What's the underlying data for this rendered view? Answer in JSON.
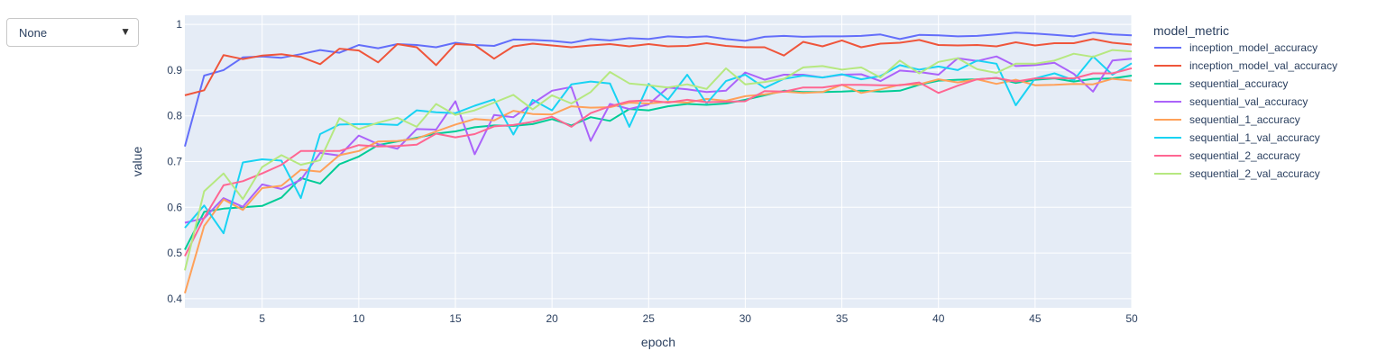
{
  "dropdown": {
    "value": "None",
    "arrow_icon": "triangle-down-icon"
  },
  "chart_data": {
    "type": "line",
    "xlabel": "epoch",
    "ylabel": "value",
    "legend_title": "model_metric",
    "legend_position": "right",
    "xlim": [
      1,
      50
    ],
    "ylim": [
      0.38,
      1.02
    ],
    "x_ticks": [
      5,
      10,
      15,
      20,
      25,
      30,
      35,
      40,
      45,
      50
    ],
    "y_ticks": [
      0.4,
      0.5,
      0.6,
      0.7,
      0.8,
      0.9,
      1
    ],
    "y_tick_labels": [
      "0.4",
      "0.5",
      "0.6",
      "0.7",
      "0.8",
      "0.9",
      "1"
    ],
    "grid": true,
    "background_color": "#e5ecf6",
    "x": [
      1,
      2,
      3,
      4,
      5,
      6,
      7,
      8,
      9,
      10,
      11,
      12,
      13,
      14,
      15,
      16,
      17,
      18,
      19,
      20,
      21,
      22,
      23,
      24,
      25,
      26,
      27,
      28,
      29,
      30,
      31,
      32,
      33,
      34,
      35,
      36,
      37,
      38,
      39,
      40,
      41,
      42,
      43,
      44,
      45,
      46,
      47,
      48,
      49,
      50
    ],
    "series": [
      {
        "name": "inception_model_accuracy",
        "color": "#636efa",
        "values": [
          0.733,
          0.888,
          0.9,
          0.928,
          0.93,
          0.927,
          0.935,
          0.944,
          0.938,
          0.955,
          0.948,
          0.957,
          0.955,
          0.95,
          0.96,
          0.955,
          0.953,
          0.967,
          0.966,
          0.964,
          0.96,
          0.968,
          0.965,
          0.97,
          0.968,
          0.974,
          0.972,
          0.974,
          0.968,
          0.964,
          0.973,
          0.975,
          0.973,
          0.974,
          0.974,
          0.975,
          0.978,
          0.968,
          0.977,
          0.976,
          0.974,
          0.975,
          0.978,
          0.982,
          0.98,
          0.977,
          0.974,
          0.982,
          0.978,
          0.976
        ]
      },
      {
        "name": "inception_model_val_accuracy",
        "color": "#ef553b",
        "values": [
          0.845,
          0.856,
          0.933,
          0.924,
          0.932,
          0.935,
          0.929,
          0.913,
          0.947,
          0.943,
          0.917,
          0.957,
          0.95,
          0.911,
          0.957,
          0.955,
          0.925,
          0.952,
          0.958,
          0.954,
          0.95,
          0.954,
          0.957,
          0.952,
          0.957,
          0.952,
          0.953,
          0.959,
          0.953,
          0.95,
          0.95,
          0.932,
          0.962,
          0.952,
          0.965,
          0.95,
          0.958,
          0.96,
          0.966,
          0.955,
          0.954,
          0.955,
          0.952,
          0.961,
          0.954,
          0.959,
          0.959,
          0.968,
          0.96,
          0.956
        ]
      },
      {
        "name": "sequential_accuracy",
        "color": "#00cc96",
        "values": [
          0.507,
          0.59,
          0.597,
          0.6,
          0.603,
          0.621,
          0.664,
          0.652,
          0.694,
          0.711,
          0.736,
          0.744,
          0.752,
          0.761,
          0.766,
          0.775,
          0.779,
          0.778,
          0.782,
          0.793,
          0.779,
          0.797,
          0.789,
          0.815,
          0.812,
          0.821,
          0.826,
          0.824,
          0.827,
          0.835,
          0.845,
          0.855,
          0.852,
          0.852,
          0.853,
          0.855,
          0.853,
          0.855,
          0.868,
          0.877,
          0.879,
          0.88,
          0.883,
          0.872,
          0.879,
          0.882,
          0.875,
          0.881,
          0.882,
          0.888
        ]
      },
      {
        "name": "sequential_val_accuracy",
        "color": "#ab63fa",
        "values": [
          0.566,
          0.576,
          0.62,
          0.601,
          0.65,
          0.64,
          0.66,
          0.719,
          0.713,
          0.757,
          0.738,
          0.728,
          0.771,
          0.77,
          0.832,
          0.716,
          0.802,
          0.797,
          0.827,
          0.855,
          0.863,
          0.745,
          0.826,
          0.815,
          0.825,
          0.862,
          0.858,
          0.852,
          0.855,
          0.895,
          0.879,
          0.89,
          0.89,
          0.884,
          0.89,
          0.891,
          0.876,
          0.899,
          0.896,
          0.89,
          0.926,
          0.92,
          0.93,
          0.909,
          0.911,
          0.916,
          0.892,
          0.853,
          0.921,
          0.925
        ]
      },
      {
        "name": "sequential_1_accuracy",
        "color": "#ffa15a",
        "values": [
          0.412,
          0.559,
          0.617,
          0.594,
          0.642,
          0.647,
          0.682,
          0.678,
          0.714,
          0.723,
          0.744,
          0.745,
          0.75,
          0.766,
          0.781,
          0.793,
          0.79,
          0.811,
          0.804,
          0.803,
          0.821,
          0.818,
          0.819,
          0.829,
          0.827,
          0.831,
          0.829,
          0.837,
          0.833,
          0.843,
          0.847,
          0.853,
          0.85,
          0.852,
          0.868,
          0.85,
          0.858,
          0.868,
          0.869,
          0.88,
          0.873,
          0.88,
          0.87,
          0.879,
          0.867,
          0.868,
          0.87,
          0.869,
          0.881,
          0.877
        ]
      },
      {
        "name": "sequential_1_val_accuracy",
        "color": "#19d3f3",
        "values": [
          0.555,
          0.604,
          0.543,
          0.698,
          0.705,
          0.702,
          0.62,
          0.76,
          0.781,
          0.782,
          0.782,
          0.78,
          0.812,
          0.808,
          0.806,
          0.822,
          0.836,
          0.759,
          0.835,
          0.812,
          0.869,
          0.875,
          0.871,
          0.776,
          0.87,
          0.835,
          0.89,
          0.827,
          0.876,
          0.89,
          0.861,
          0.881,
          0.888,
          0.884,
          0.891,
          0.88,
          0.887,
          0.911,
          0.901,
          0.908,
          0.9,
          0.921,
          0.914,
          0.823,
          0.882,
          0.893,
          0.878,
          0.93,
          0.89,
          0.915
        ]
      },
      {
        "name": "sequential_2_accuracy",
        "color": "#ff6692",
        "values": [
          0.493,
          0.577,
          0.648,
          0.657,
          0.674,
          0.693,
          0.723,
          0.723,
          0.723,
          0.736,
          0.733,
          0.734,
          0.737,
          0.761,
          0.753,
          0.76,
          0.777,
          0.78,
          0.787,
          0.798,
          0.776,
          0.806,
          0.821,
          0.832,
          0.834,
          0.829,
          0.835,
          0.83,
          0.831,
          0.832,
          0.854,
          0.853,
          0.862,
          0.862,
          0.868,
          0.868,
          0.867,
          0.867,
          0.873,
          0.85,
          0.866,
          0.88,
          0.883,
          0.875,
          0.882,
          0.883,
          0.882,
          0.893,
          0.893,
          0.904
        ]
      },
      {
        "name": "sequential_2_val_accuracy",
        "color": "#b6e880",
        "values": [
          0.462,
          0.635,
          0.674,
          0.618,
          0.688,
          0.714,
          0.693,
          0.703,
          0.795,
          0.771,
          0.785,
          0.796,
          0.776,
          0.826,
          0.802,
          0.812,
          0.829,
          0.846,
          0.814,
          0.845,
          0.827,
          0.852,
          0.896,
          0.871,
          0.867,
          0.862,
          0.869,
          0.859,
          0.904,
          0.869,
          0.874,
          0.881,
          0.906,
          0.909,
          0.901,
          0.906,
          0.884,
          0.921,
          0.893,
          0.918,
          0.926,
          0.902,
          0.894,
          0.914,
          0.914,
          0.921,
          0.936,
          0.929,
          0.944,
          0.941
        ]
      }
    ]
  }
}
